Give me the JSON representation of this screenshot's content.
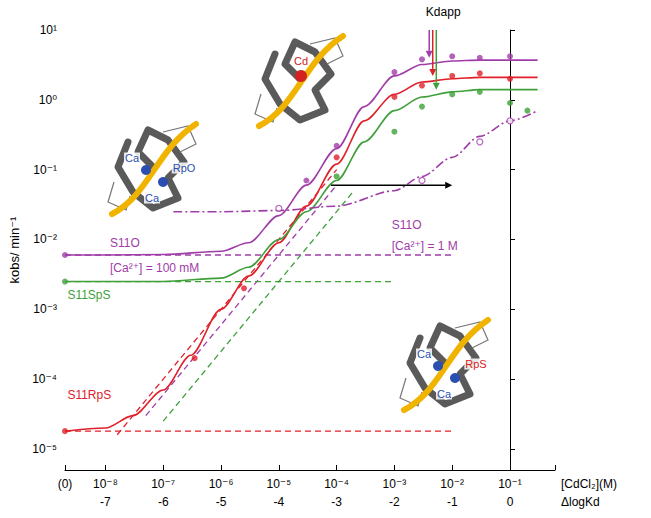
{
  "chart_data": {
    "type": "line",
    "log": true,
    "grid": false,
    "x_label": "[CdCl₂](M)",
    "x2_label": "ΔlogKd",
    "y_label": "kobs/ min⁻¹",
    "xlim": [
      2e-09,
      0.6
    ],
    "xticks": [
      {
        "value": 2e-09,
        "label": "(0)"
      },
      {
        "value": 1e-08,
        "label": "10⁻⁸"
      },
      {
        "value": 1e-07,
        "label": "10⁻⁷"
      },
      {
        "value": 1e-06,
        "label": "10⁻⁶"
      },
      {
        "value": 1e-05,
        "label": "10⁻⁵"
      },
      {
        "value": 0.0001,
        "label": "10⁻⁴"
      },
      {
        "value": 0.001,
        "label": "10⁻³"
      },
      {
        "value": 0.01,
        "label": "10⁻²"
      },
      {
        "value": 0.1,
        "label": "10⁻¹"
      }
    ],
    "x2lim": [
      -7.699,
      0.778
    ],
    "x2ticks": [
      -7,
      -6,
      -5,
      -4,
      -3,
      -2,
      -1,
      0
    ],
    "ylim": [
      5e-06,
      10
    ],
    "yticks": [
      {
        "value": 1e-05,
        "label": "10⁻⁵"
      },
      {
        "value": 0.0001,
        "label": "10⁻⁴"
      },
      {
        "value": 0.001,
        "label": "10⁻³"
      },
      {
        "value": 0.01,
        "label": "10⁻²"
      },
      {
        "value": 0.1,
        "label": "10⁻¹"
      },
      {
        "value": 1,
        "label": "10⁰"
      },
      {
        "value": 10,
        "label": "10¹"
      }
    ],
    "series": [
      {
        "name": "S11O",
        "color": "#a03ca8",
        "line_style": "solid",
        "marker": "circle",
        "values": [
          [
            2e-09,
            0.006
          ],
          [
            1e-08,
            0.006
          ],
          [
            1e-07,
            0.0061
          ],
          [
            1e-06,
            0.0068
          ],
          [
            3e-06,
            0.009
          ],
          [
            1e-05,
            0.022
          ],
          [
            3e-05,
            0.06
          ],
          [
            0.0001,
            0.2
          ],
          [
            0.0003,
            0.8
          ],
          [
            0.001,
            2.2
          ],
          [
            0.003,
            3.2
          ],
          [
            0.01,
            3.6
          ],
          [
            0.03,
            3.7
          ],
          [
            0.1,
            3.7
          ],
          [
            0.3,
            3.7
          ]
        ],
        "points": [
          [
            2e-09,
            0.006
          ],
          [
            3e-05,
            0.07
          ],
          [
            0.0001,
            0.22
          ],
          [
            0.001,
            2.5
          ],
          [
            0.003,
            3.8
          ],
          [
            0.01,
            4.2
          ],
          [
            0.03,
            4.0
          ],
          [
            0.1,
            4.2
          ]
        ]
      },
      {
        "name": "S11RpS",
        "color": "#e0202a",
        "line_style": "solid",
        "marker": "circle",
        "values": [
          [
            2e-09,
            1.8e-05
          ],
          [
            1e-08,
            2e-05
          ],
          [
            3e-08,
            3e-05
          ],
          [
            1e-07,
            7e-05
          ],
          [
            3e-07,
            0.00022
          ],
          [
            1e-06,
            0.001
          ],
          [
            3e-06,
            0.003
          ],
          [
            1e-05,
            0.009
          ],
          [
            3e-05,
            0.03
          ],
          [
            0.0001,
            0.12
          ],
          [
            0.0003,
            0.5
          ],
          [
            0.001,
            1.2
          ],
          [
            0.003,
            1.8
          ],
          [
            0.01,
            2.0
          ],
          [
            0.03,
            2.1
          ],
          [
            0.1,
            2.1
          ],
          [
            0.3,
            2.1
          ]
        ],
        "points": [
          [
            2e-09,
            1.8e-05
          ],
          [
            3.5e-07,
            0.0002
          ],
          [
            2.5e-06,
            0.002
          ],
          [
            0.0001,
            0.15
          ],
          [
            0.001,
            1.1
          ],
          [
            0.003,
            1.6
          ],
          [
            0.01,
            2.2
          ],
          [
            0.03,
            2.4
          ],
          [
            0.1,
            2.0
          ]
        ]
      },
      {
        "name": "S11SpS",
        "color": "#3fa03a",
        "line_style": "solid",
        "marker": "circle",
        "values": [
          [
            2e-09,
            0.0025
          ],
          [
            1e-08,
            0.0025
          ],
          [
            1e-07,
            0.0025
          ],
          [
            1e-06,
            0.0028
          ],
          [
            3e-06,
            0.004
          ],
          [
            1e-05,
            0.01
          ],
          [
            3e-05,
            0.025
          ],
          [
            0.0001,
            0.07
          ],
          [
            0.0003,
            0.25
          ],
          [
            0.001,
            0.7
          ],
          [
            0.003,
            1.1
          ],
          [
            0.01,
            1.3
          ],
          [
            0.03,
            1.4
          ],
          [
            0.1,
            1.4
          ],
          [
            0.3,
            1.4
          ]
        ],
        "points": [
          [
            2e-09,
            0.0025
          ],
          [
            0.0001,
            0.08
          ],
          [
            0.001,
            0.35
          ],
          [
            0.003,
            0.8
          ],
          [
            0.01,
            1.2
          ],
          [
            0.03,
            1.3
          ],
          [
            0.1,
            0.9
          ],
          [
            0.2,
            0.7
          ]
        ]
      },
      {
        "name": "S11O",
        "color": "#a03ca8",
        "line_style": "dashdot",
        "marker": "open_circle",
        "values": [
          [
            1.5e-07,
            0.025
          ],
          [
            1e-06,
            0.025
          ],
          [
            1e-05,
            0.026
          ],
          [
            0.0001,
            0.03
          ],
          [
            0.001,
            0.05
          ],
          [
            0.003,
            0.08
          ],
          [
            0.01,
            0.15
          ],
          [
            0.03,
            0.3
          ],
          [
            0.1,
            0.5
          ],
          [
            0.3,
            0.7
          ]
        ],
        "points": [
          [
            1e-05,
            0.028
          ],
          [
            0.003,
            0.07
          ],
          [
            0.03,
            0.25
          ],
          [
            0.1,
            0.5
          ]
        ]
      }
    ],
    "guides": [
      {
        "color": "#a03ca8",
        "line_style": "dashed",
        "values": [
          [
            2e-09,
            0.006
          ],
          [
            0.01,
            0.006
          ]
        ]
      },
      {
        "color": "#a03ca8",
        "line_style": "dashed",
        "values": [
          [
            5e-08,
            3e-05
          ],
          [
            0.0001,
            0.06
          ]
        ]
      },
      {
        "color": "#3fa03a",
        "line_style": "dashed",
        "values": [
          [
            2e-09,
            0.0025
          ],
          [
            0.001,
            0.0025
          ]
        ]
      },
      {
        "color": "#3fa03a",
        "line_style": "dashed",
        "values": [
          [
            1e-07,
            2.5e-05
          ],
          [
            0.0002,
            0.05
          ]
        ]
      },
      {
        "color": "#e0202a",
        "line_style": "dashed",
        "values": [
          [
            2e-09,
            1.8e-05
          ],
          [
            0.01,
            1.8e-05
          ]
        ]
      },
      {
        "color": "#e0202a",
        "line_style": "dashed",
        "values": [
          [
            1.6e-08,
            1.6e-05
          ],
          [
            0.0001,
            0.1
          ]
        ]
      }
    ],
    "annotations": [
      {
        "text": "Kdapp",
        "x": 0.0035,
        "y": 18,
        "color": "#000000"
      },
      {
        "text": "S11O",
        "x": 1.2e-08,
        "y": 0.009,
        "color": "#a03ca8"
      },
      {
        "text": "[Ca²⁺] = 100 mM",
        "x": 1.2e-08,
        "y": 0.0039,
        "color": "#a03ca8"
      },
      {
        "text": "S11SpS",
        "x": 2.2e-09,
        "y": 0.0016,
        "color": "#3fa03a"
      },
      {
        "text": "S11RpS",
        "x": 2.2e-09,
        "y": 6e-05,
        "color": "#e0202a"
      },
      {
        "text": "S11O",
        "x": 0.0009,
        "y": 0.016,
        "color": "#a03ca8"
      },
      {
        "text": "[Ca²⁺] = 1 M",
        "x": 0.0009,
        "y": 0.008,
        "color": "#a03ca8"
      }
    ],
    "kd_app": [
      {
        "name": "S11O",
        "x": 0.004,
        "y": 4.0,
        "color": "#a03ca8"
      },
      {
        "name": "S11RpS",
        "x": 0.0046,
        "y": 2.2,
        "color": "#e0202a"
      },
      {
        "name": "S11SpS",
        "x": 0.0053,
        "y": 1.4,
        "color": "#3fa03a"
      }
    ],
    "arrows": [
      {
        "from": [
          8e-05,
          0.06
        ],
        "to": [
          0.01,
          0.06
        ],
        "color": "#000000"
      }
    ],
    "insets": [
      {
        "labels": [
          {
            "text": "Ca",
            "color": "#2a4fb0"
          },
          {
            "text": "RpO",
            "color": "#2a4fb0"
          },
          {
            "text": "Ca",
            "color": "#2a4fb0"
          }
        ]
      },
      {
        "labels": [
          {
            "text": "Cd",
            "color": "#d42020"
          }
        ]
      },
      {
        "labels": [
          {
            "text": "Ca",
            "color": "#2a4fb0"
          },
          {
            "text": "RpS",
            "color": "#d42020"
          },
          {
            "text": "Ca",
            "color": "#2a4fb0"
          }
        ]
      }
    ]
  }
}
